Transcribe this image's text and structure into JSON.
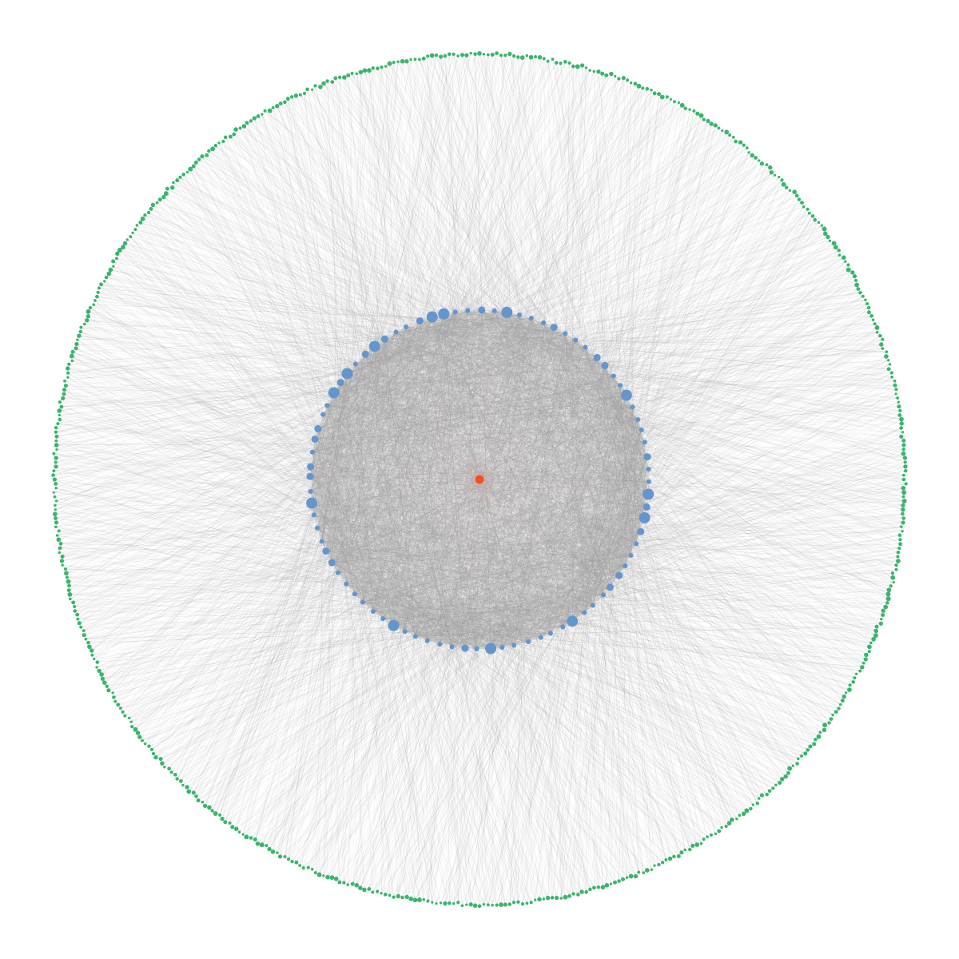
{
  "diagram": {
    "type": "radial-network",
    "layout": "concentric-rings",
    "background_color": "#ffffff",
    "edge_color": "#999999",
    "inner_edge_color": "#c9a9a9",
    "center_node": {
      "count": 1,
      "color": "#e8542a"
    },
    "inner_ring": {
      "node_count": 84,
      "color": "#6495cd"
    },
    "outer_ring": {
      "node_count": 620,
      "color": "#3cb46e"
    }
  }
}
